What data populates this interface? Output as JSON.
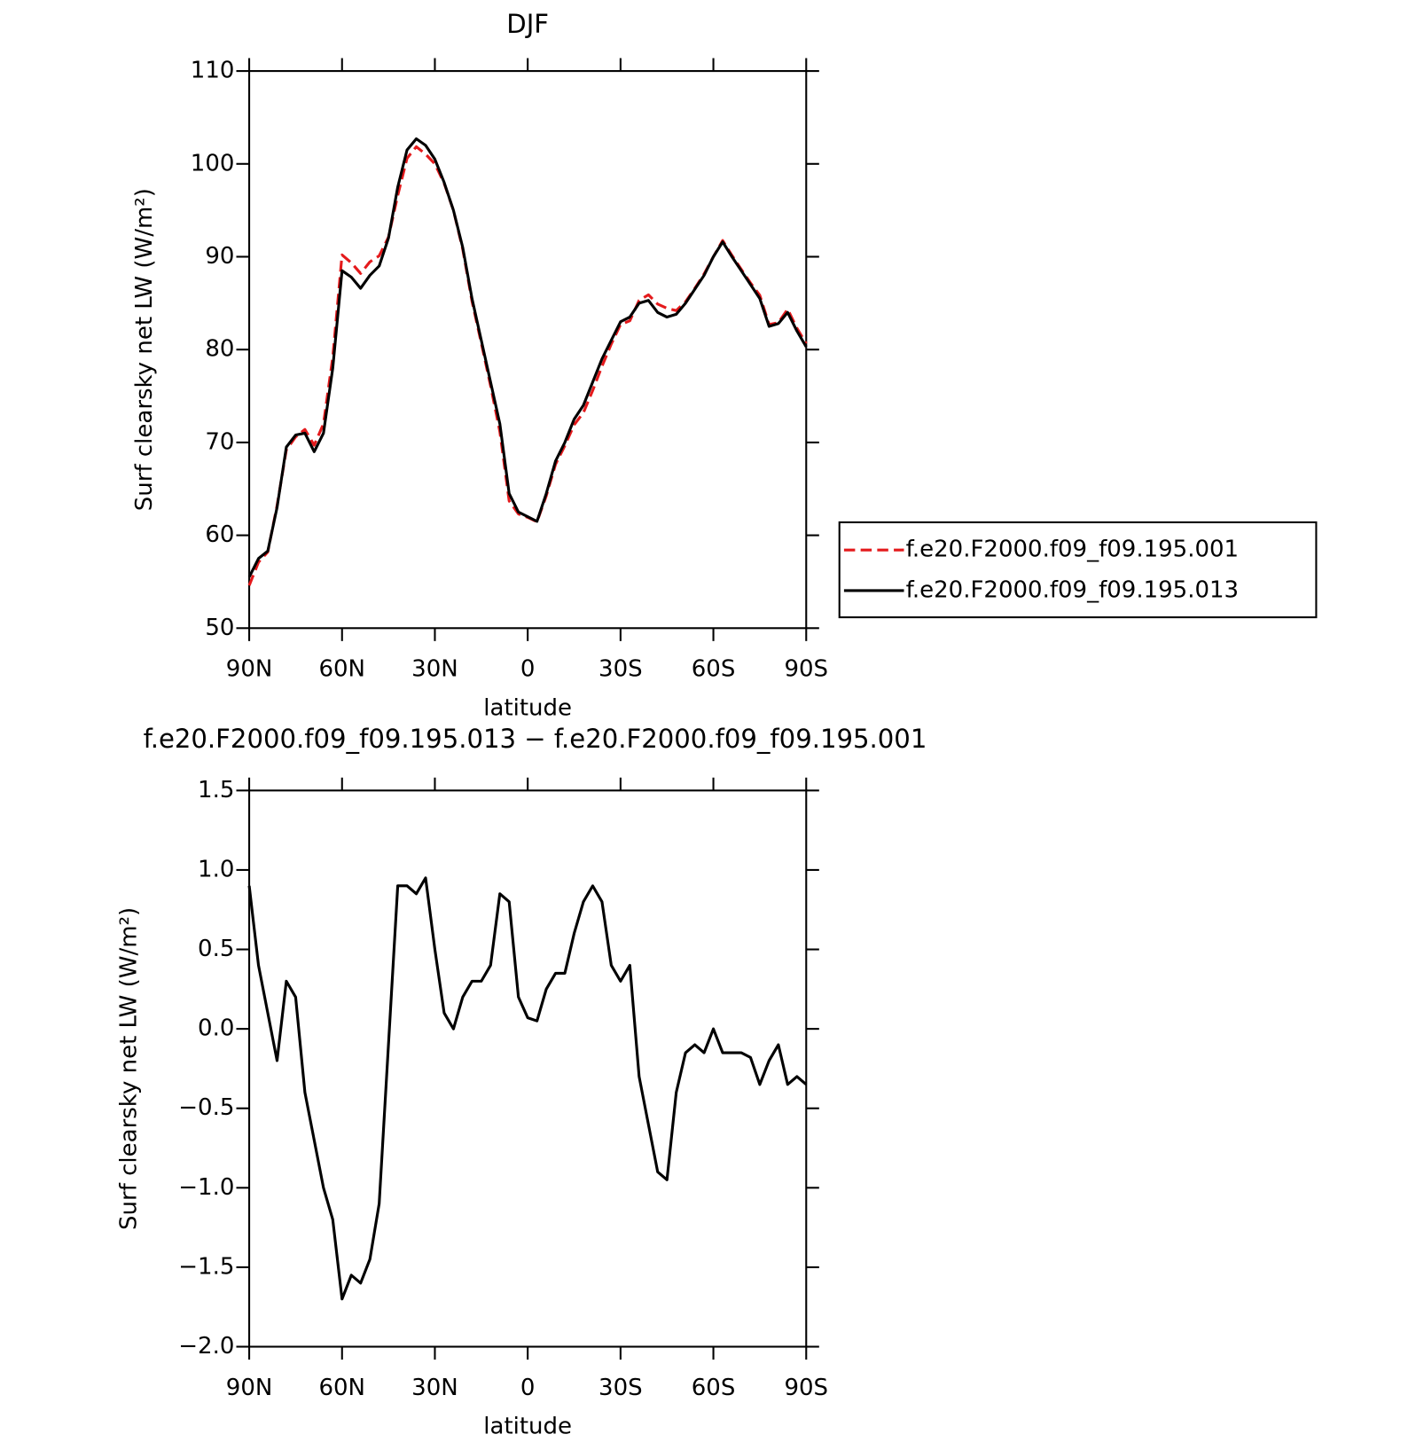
{
  "chart_data": [
    {
      "type": "line",
      "title": "DJF",
      "xlabel": "latitude",
      "ylabel": "Surf clearsky net LW (W/m²)",
      "x": [
        90,
        87,
        84,
        81,
        78,
        75,
        72,
        69,
        66,
        63,
        60,
        57,
        54,
        51,
        48,
        45,
        42,
        39,
        36,
        33,
        30,
        27,
        24,
        21,
        18,
        15,
        12,
        9,
        6,
        3,
        0,
        -3,
        -6,
        -9,
        -12,
        -15,
        -18,
        -21,
        -24,
        -27,
        -30,
        -33,
        -36,
        -39,
        -42,
        -45,
        -48,
        -51,
        -54,
        -57,
        -60,
        -63,
        -66,
        -69,
        -72,
        -75,
        -78,
        -81,
        -84,
        -87,
        -90
      ],
      "series": [
        {
          "name": "f.e20.F2000.f09_f09.195.001",
          "color": "#e41a1c",
          "linestyle": "dashed",
          "values": [
            54.6,
            57.1,
            58.2,
            63.2,
            69.2,
            70.6,
            71.4,
            69.7,
            72.0,
            79.2,
            90.2,
            89.35,
            88.2,
            89.45,
            90.1,
            92.1,
            96.6,
            100.6,
            101.85,
            101.05,
            100.0,
            97.9,
            95.0,
            90.8,
            85.2,
            80.7,
            76.1,
            71.15,
            63.7,
            62.3,
            61.93,
            61.45,
            64.25,
            67.65,
            69.65,
            71.9,
            73.2,
            75.6,
            78.2,
            80.6,
            82.7,
            83.1,
            85.3,
            85.9,
            84.9,
            84.45,
            84.2,
            85.15,
            86.6,
            88.15,
            90.0,
            91.75,
            90.15,
            88.65,
            87.18,
            85.85,
            82.7,
            82.9,
            84.35,
            82.3,
            80.65
          ]
        },
        {
          "name": "f.e20.F2000.f09_f09.195.013",
          "color": "#000000",
          "linestyle": "solid",
          "values": [
            55.5,
            57.5,
            58.3,
            63.0,
            69.5,
            70.8,
            71.0,
            69.0,
            71.0,
            78.0,
            88.5,
            87.8,
            86.6,
            88.0,
            89.0,
            92.0,
            97.5,
            101.5,
            102.7,
            102.0,
            100.5,
            98.0,
            95.0,
            91.0,
            85.5,
            81.0,
            76.5,
            72.0,
            64.5,
            62.5,
            62.0,
            61.5,
            64.5,
            68.0,
            70.0,
            72.5,
            74.0,
            76.5,
            79.0,
            81.0,
            83.0,
            83.5,
            85.0,
            85.3,
            84.0,
            83.5,
            83.8,
            85.0,
            86.5,
            88.0,
            90.0,
            91.6,
            90.0,
            88.5,
            87.0,
            85.5,
            82.5,
            82.8,
            84.0,
            82.0,
            80.3
          ]
        }
      ],
      "xlim": [
        90,
        -90
      ],
      "xticks": [
        {
          "value": 90,
          "label": "90N"
        },
        {
          "value": 60,
          "label": "60N"
        },
        {
          "value": 30,
          "label": "30N"
        },
        0,
        {
          "value": -30,
          "label": "30S"
        },
        {
          "value": -60,
          "label": "60S"
        },
        {
          "value": -90,
          "label": "90S"
        }
      ],
      "ylim": [
        50,
        110
      ],
      "yticks": [
        50,
        60,
        70,
        80,
        90,
        100,
        110
      ],
      "legend": "right"
    },
    {
      "type": "line",
      "title": "f.e20.F2000.f09_f09.195.013 − f.e20.F2000.f09_f09.195.001",
      "xlabel": "latitude",
      "ylabel": "Surf clearsky net LW (W/m²)",
      "x": [
        90,
        87,
        84,
        81,
        78,
        75,
        72,
        69,
        66,
        63,
        60,
        57,
        54,
        51,
        48,
        45,
        42,
        39,
        36,
        33,
        30,
        27,
        24,
        21,
        18,
        15,
        12,
        9,
        6,
        3,
        0,
        -3,
        -6,
        -9,
        -12,
        -15,
        -18,
        -21,
        -24,
        -27,
        -30,
        -33,
        -36,
        -39,
        -42,
        -45,
        -48,
        -51,
        -54,
        -57,
        -60,
        -63,
        -66,
        -69,
        -72,
        -75,
        -78,
        -81,
        -84,
        -87,
        -90
      ],
      "series": [
        {
          "color": "#000000",
          "linestyle": "solid",
          "values": [
            0.9,
            0.4,
            0.1,
            -0.2,
            0.3,
            0.2,
            -0.4,
            -0.7,
            -1.0,
            -1.2,
            -1.7,
            -1.55,
            -1.6,
            -1.45,
            -1.1,
            -0.1,
            0.9,
            0.9,
            0.85,
            0.95,
            0.5,
            0.1,
            0.0,
            0.2,
            0.3,
            0.3,
            0.4,
            0.85,
            0.8,
            0.2,
            0.07,
            0.05,
            0.25,
            0.35,
            0.35,
            0.6,
            0.8,
            0.9,
            0.8,
            0.4,
            0.3,
            0.4,
            -0.3,
            -0.6,
            -0.9,
            -0.95,
            -0.4,
            -0.15,
            -0.1,
            -0.15,
            0.0,
            -0.15,
            -0.15,
            -0.15,
            -0.18,
            -0.35,
            -0.2,
            -0.1,
            -0.35,
            -0.3,
            -0.35
          ]
        }
      ],
      "xlim": [
        90,
        -90
      ],
      "xticks": [
        {
          "value": 90,
          "label": "90N"
        },
        {
          "value": 60,
          "label": "60N"
        },
        {
          "value": 30,
          "label": "30N"
        },
        0,
        {
          "value": -30,
          "label": "30S"
        },
        {
          "value": -60,
          "label": "60S"
        },
        {
          "value": -90,
          "label": "90S"
        }
      ],
      "ylim": [
        -2.0,
        1.5
      ],
      "yticks": [
        {
          "value": -2.0,
          "label": "−2.0"
        },
        {
          "value": -1.5,
          "label": "−1.5"
        },
        {
          "value": -1.0,
          "label": "−1.0"
        },
        {
          "value": -0.5,
          "label": "−0.5"
        },
        {
          "value": 0.0,
          "label": "0.0"
        },
        {
          "value": 0.5,
          "label": "0.5"
        },
        {
          "value": 1.0,
          "label": "1.0"
        },
        {
          "value": 1.5,
          "label": "1.5"
        }
      ]
    }
  ]
}
